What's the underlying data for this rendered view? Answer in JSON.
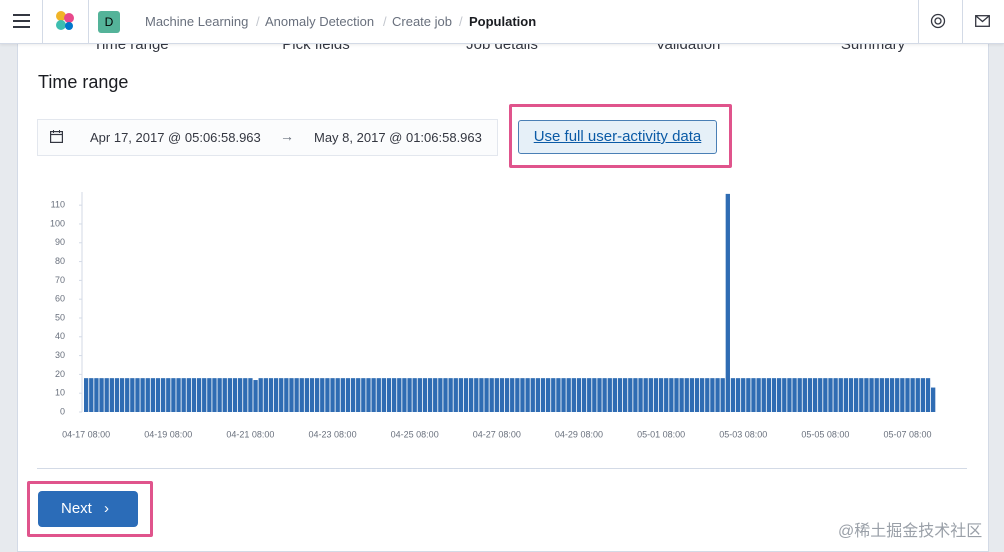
{
  "header": {
    "avatar": "D",
    "breadcrumbs": [
      "Machine Learning",
      "Anomaly Detection",
      "Create job",
      "Population"
    ]
  },
  "steps": [
    "Time range",
    "Pick fields",
    "Job details",
    "Validation",
    "Summary"
  ],
  "section": {
    "title": "Time range",
    "start": "Apr 17, 2017 @ 05:06:58.963",
    "end": "May 8, 2017 @ 01:06:58.963",
    "full_data_button": "Use full user-activity data"
  },
  "chart_data": {
    "type": "bar",
    "color": "#2f6cb3",
    "categories": [
      "04-17 08:00",
      null,
      null,
      null,
      null,
      null,
      null,
      null,
      null,
      null,
      null,
      null,
      null,
      null,
      null,
      null,
      "04-19 08:00",
      null,
      null,
      null,
      null,
      null,
      null,
      null,
      null,
      null,
      null,
      null,
      null,
      null,
      null,
      null,
      "04-21 08:00",
      null,
      null,
      null,
      null,
      null,
      null,
      null,
      null,
      null,
      null,
      null,
      null,
      null,
      null,
      null,
      "04-23 08:00",
      null,
      null,
      null,
      null,
      null,
      null,
      null,
      null,
      null,
      null,
      null,
      null,
      null,
      null,
      null,
      "04-25 08:00",
      null,
      null,
      null,
      null,
      null,
      null,
      null,
      null,
      null,
      null,
      null,
      null,
      null,
      null,
      null,
      "04-27 08:00",
      null,
      null,
      null,
      null,
      null,
      null,
      null,
      null,
      null,
      null,
      null,
      null,
      null,
      null,
      null,
      "04-29 08:00",
      null,
      null,
      null,
      null,
      null,
      null,
      null,
      null,
      null,
      null,
      null,
      null,
      null,
      null,
      null,
      "05-01 08:00",
      null,
      null,
      null,
      null,
      null,
      null,
      null,
      null,
      null,
      null,
      null,
      null,
      null,
      null,
      null,
      "05-03 08:00",
      null,
      null,
      null,
      null,
      null,
      null,
      null,
      null,
      null,
      null,
      null,
      null,
      null,
      null,
      null,
      "05-05 08:00",
      null,
      null,
      null,
      null,
      null,
      null,
      null,
      null,
      null,
      null,
      null,
      null,
      null,
      null,
      null,
      "05-07 08:00",
      null,
      null,
      null,
      null,
      null
    ],
    "values": [
      18,
      18,
      18,
      18,
      18,
      18,
      18,
      18,
      18,
      18,
      18,
      18,
      18,
      18,
      18,
      18,
      18,
      18,
      18,
      18,
      18,
      18,
      18,
      18,
      18,
      18,
      18,
      18,
      18,
      18,
      18,
      18,
      18,
      17,
      18,
      18,
      18,
      18,
      18,
      18,
      18,
      18,
      18,
      18,
      18,
      18,
      18,
      18,
      18,
      18,
      18,
      18,
      18,
      18,
      18,
      18,
      18,
      18,
      18,
      18,
      18,
      18,
      18,
      18,
      18,
      18,
      18,
      18,
      18,
      18,
      18,
      18,
      18,
      18,
      18,
      18,
      18,
      18,
      18,
      18,
      18,
      18,
      18,
      18,
      18,
      18,
      18,
      18,
      18,
      18,
      18,
      18,
      18,
      18,
      18,
      18,
      18,
      18,
      18,
      18,
      18,
      18,
      18,
      18,
      18,
      18,
      18,
      18,
      18,
      18,
      18,
      18,
      18,
      18,
      18,
      18,
      18,
      18,
      18,
      18,
      18,
      18,
      18,
      18,
      18,
      116,
      18,
      18,
      18,
      18,
      18,
      18,
      18,
      18,
      18,
      18,
      18,
      18,
      18,
      18,
      18,
      18,
      18,
      18,
      18,
      18,
      18,
      18,
      18,
      18,
      18,
      18,
      18,
      18,
      18,
      18,
      18,
      18,
      18,
      18,
      18,
      18,
      18,
      18,
      18,
      13
    ],
    "ylim": [
      0,
      117
    ],
    "yticks": [
      0,
      10,
      20,
      30,
      40,
      50,
      60,
      70,
      80,
      90,
      100,
      110
    ]
  },
  "footer": {
    "next": "Next",
    "watermark": "@稀土掘金技术社区"
  }
}
